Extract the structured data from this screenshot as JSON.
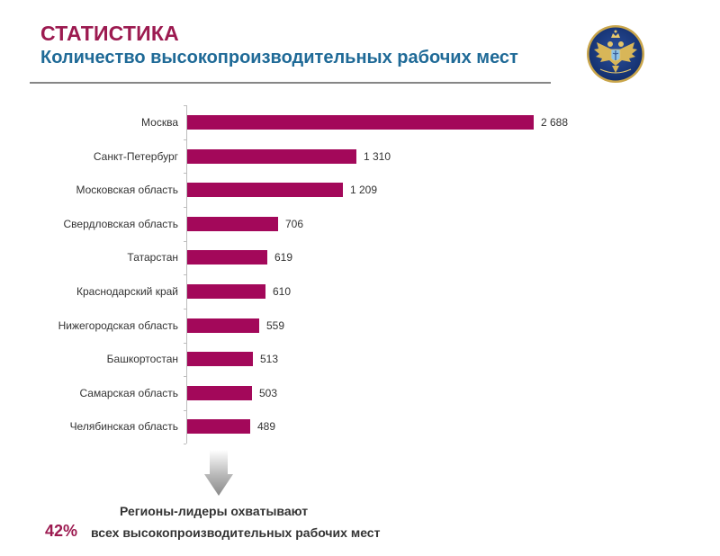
{
  "header": {
    "title": "СТАТИСТИКА",
    "subtitle": "Количество высокопроизводительных рабочих мест",
    "emblem": "coat-of-arms-emblem"
  },
  "colors": {
    "title": "#9c1a50",
    "subtitle": "#1f6a97",
    "bar": "#a3085a",
    "accent_percent": "#9c1a50"
  },
  "chart_data": {
    "type": "bar",
    "orientation": "horizontal",
    "title": "Количество высокопроизводительных рабочих мест",
    "xlabel": "",
    "ylabel": "",
    "categories": [
      "Москва",
      "Санкт-Петербург",
      "Московская область",
      "Свердловская область",
      "Татарстан",
      "Краснодарский край",
      "Нижегородская область",
      "Башкортостан",
      "Самарская область",
      "Челябинская область"
    ],
    "values": [
      2688,
      1310,
      1209,
      706,
      619,
      610,
      559,
      513,
      503,
      489
    ],
    "value_labels": [
      "2 688",
      "1 310",
      "1 209",
      "706",
      "619",
      "610",
      "559",
      "513",
      "503",
      "489"
    ],
    "xlim": [
      0,
      2688
    ],
    "grid": false,
    "legend": null
  },
  "footer": {
    "line1": "Регионы-лидеры охватывают",
    "percent": "42%",
    "line2": "всех высокопроизводительных рабочих мест",
    "arrow_icon": "down-arrow-icon"
  }
}
